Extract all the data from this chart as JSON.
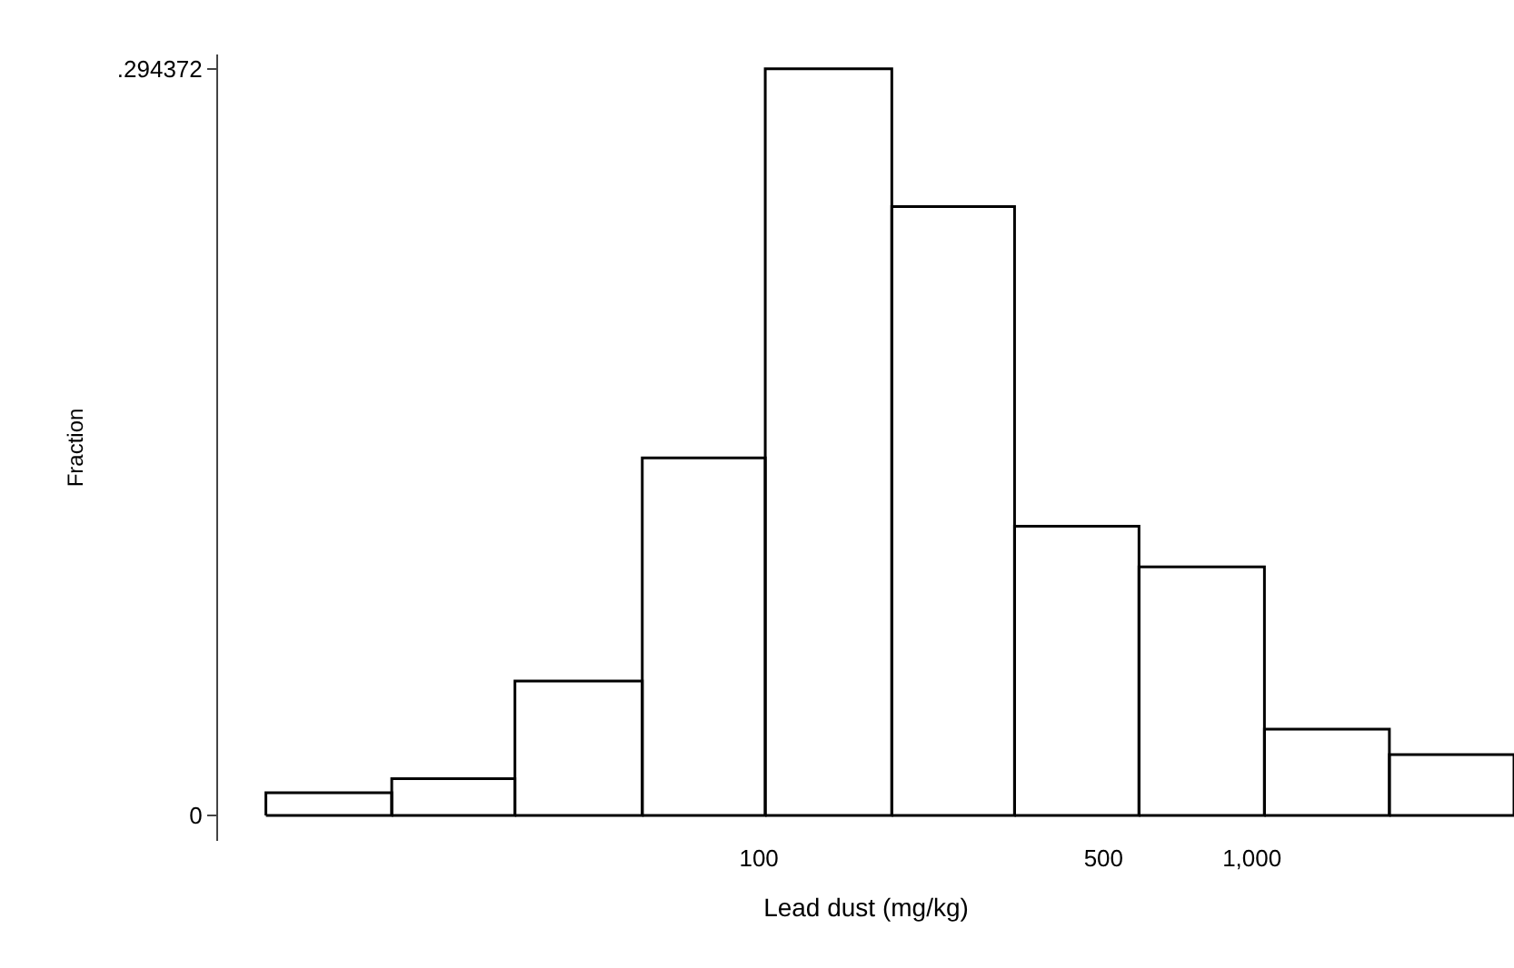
{
  "chart_data": {
    "type": "histogram",
    "xlabel": "Lead dust (mg/kg)",
    "ylabel": "Fraction",
    "bins": [
      10,
      18,
      32,
      58,
      103,
      186,
      330,
      590,
      1060,
      1900,
      3400
    ],
    "values": [
      0.009,
      0.0145,
      0.053,
      0.141,
      0.294372,
      0.24,
      0.114,
      0.098,
      0.034,
      0.024
    ],
    "color": "#000000",
    "log": "x",
    "xlim": [
      8,
      3400
    ],
    "xticks": [
      100,
      500,
      {
        "value": 1000,
        "label": "1,000"
      }
    ],
    "ylim": [
      -0.01,
      0.3
    ],
    "yticks": [
      0,
      {
        "value": 0.294372,
        "label": ".294372"
      }
    ]
  }
}
